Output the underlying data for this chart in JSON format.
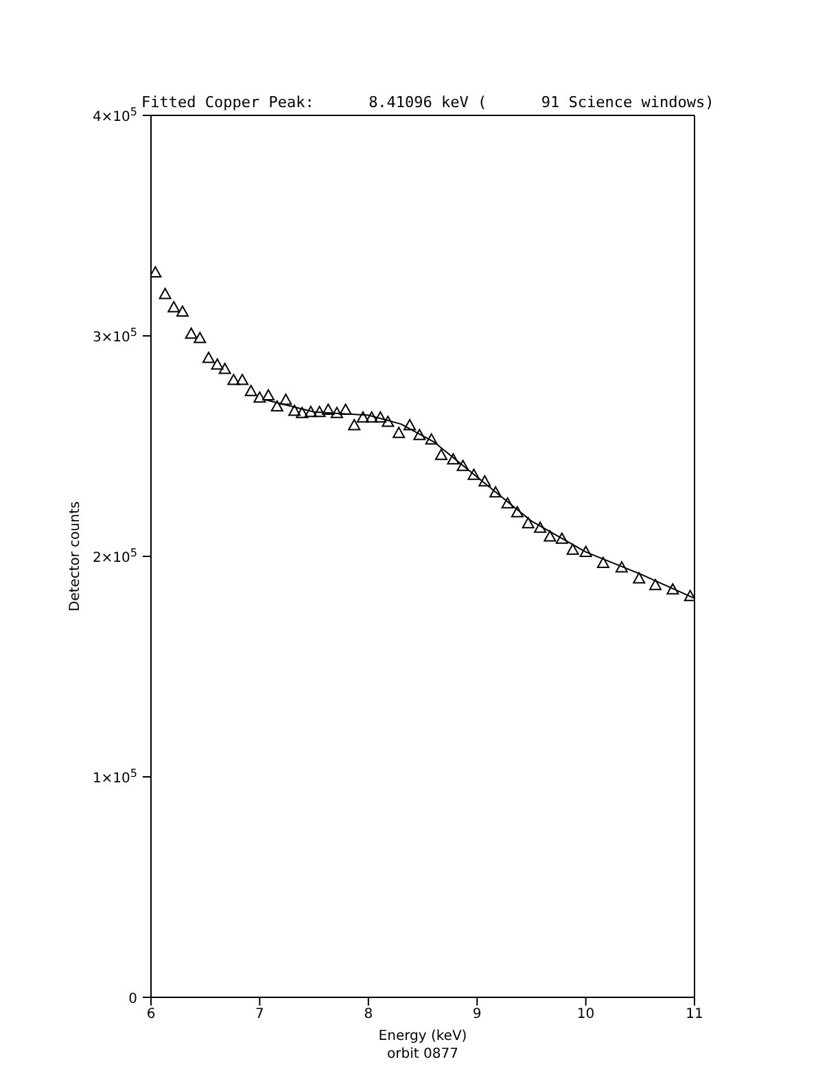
{
  "chart_data": {
    "type": "scatter",
    "title": "Fitted Copper Peak:      8.41096 keV (      91 Science windows)",
    "xlabel": "Energy (keV)",
    "ylabel": "Detector counts",
    "annotations": [
      "orbit 0877"
    ],
    "xlim": [
      6,
      11
    ],
    "xticks": [
      6,
      7,
      8,
      9,
      10,
      11
    ],
    "ylim": [
      0,
      400000
    ],
    "yticks": [
      {
        "value": 0,
        "label": "0"
      },
      {
        "value": 100000,
        "label": "1×10$^{5}$"
      },
      {
        "value": 200000,
        "label": "2×10$^{5}$"
      },
      {
        "value": 300000,
        "label": "3×10$^{5}$"
      },
      {
        "value": 400000,
        "label": "4×10$^{5}$"
      }
    ],
    "series": [
      {
        "color": "#000000",
        "marker": "triangle",
        "x": [
          6.04,
          6.13,
          6.21,
          6.29,
          6.37,
          6.45,
          6.53,
          6.61,
          6.68,
          6.76,
          6.84,
          6.92,
          7.0,
          7.08,
          7.16,
          7.24,
          7.32,
          7.39,
          7.47,
          7.55,
          7.63,
          7.71,
          7.79,
          7.87,
          7.95,
          8.03,
          8.11,
          8.18,
          8.28,
          8.38,
          8.47,
          8.58,
          8.67,
          8.78,
          8.87,
          8.97,
          9.07,
          9.17,
          9.28,
          9.37,
          9.47,
          9.58,
          9.67,
          9.78,
          9.88,
          10.0,
          10.16,
          10.33,
          10.49,
          10.64,
          10.8,
          10.96
        ],
        "values": [
          328800,
          319000,
          313000,
          311000,
          301000,
          299000,
          290000,
          287000,
          285000,
          280000,
          280000,
          275000,
          272000,
          273000,
          268000,
          271000,
          266000,
          265000,
          265500,
          265500,
          266500,
          265000,
          266500,
          259500,
          263000,
          263000,
          263000,
          261000,
          256000,
          259500,
          255000,
          253000,
          246000,
          244000,
          241000,
          237000,
          234000,
          229000,
          224000,
          220000,
          215000,
          213000,
          209000,
          208000,
          203000,
          202000,
          197000,
          195000,
          190000,
          187000,
          185000,
          182000
        ]
      },
      {
        "type": "line",
        "color": "#000000",
        "marker": "none",
        "line_style": "solid",
        "x": [
          7.05,
          7.5,
          8.0,
          8.3,
          8.6,
          9.0,
          9.5,
          10.0,
          10.5,
          11.0
        ],
        "values": [
          271000,
          265500,
          264000,
          260000,
          252000,
          236000,
          216000,
          202000,
          192000,
          181000
        ]
      }
    ]
  }
}
